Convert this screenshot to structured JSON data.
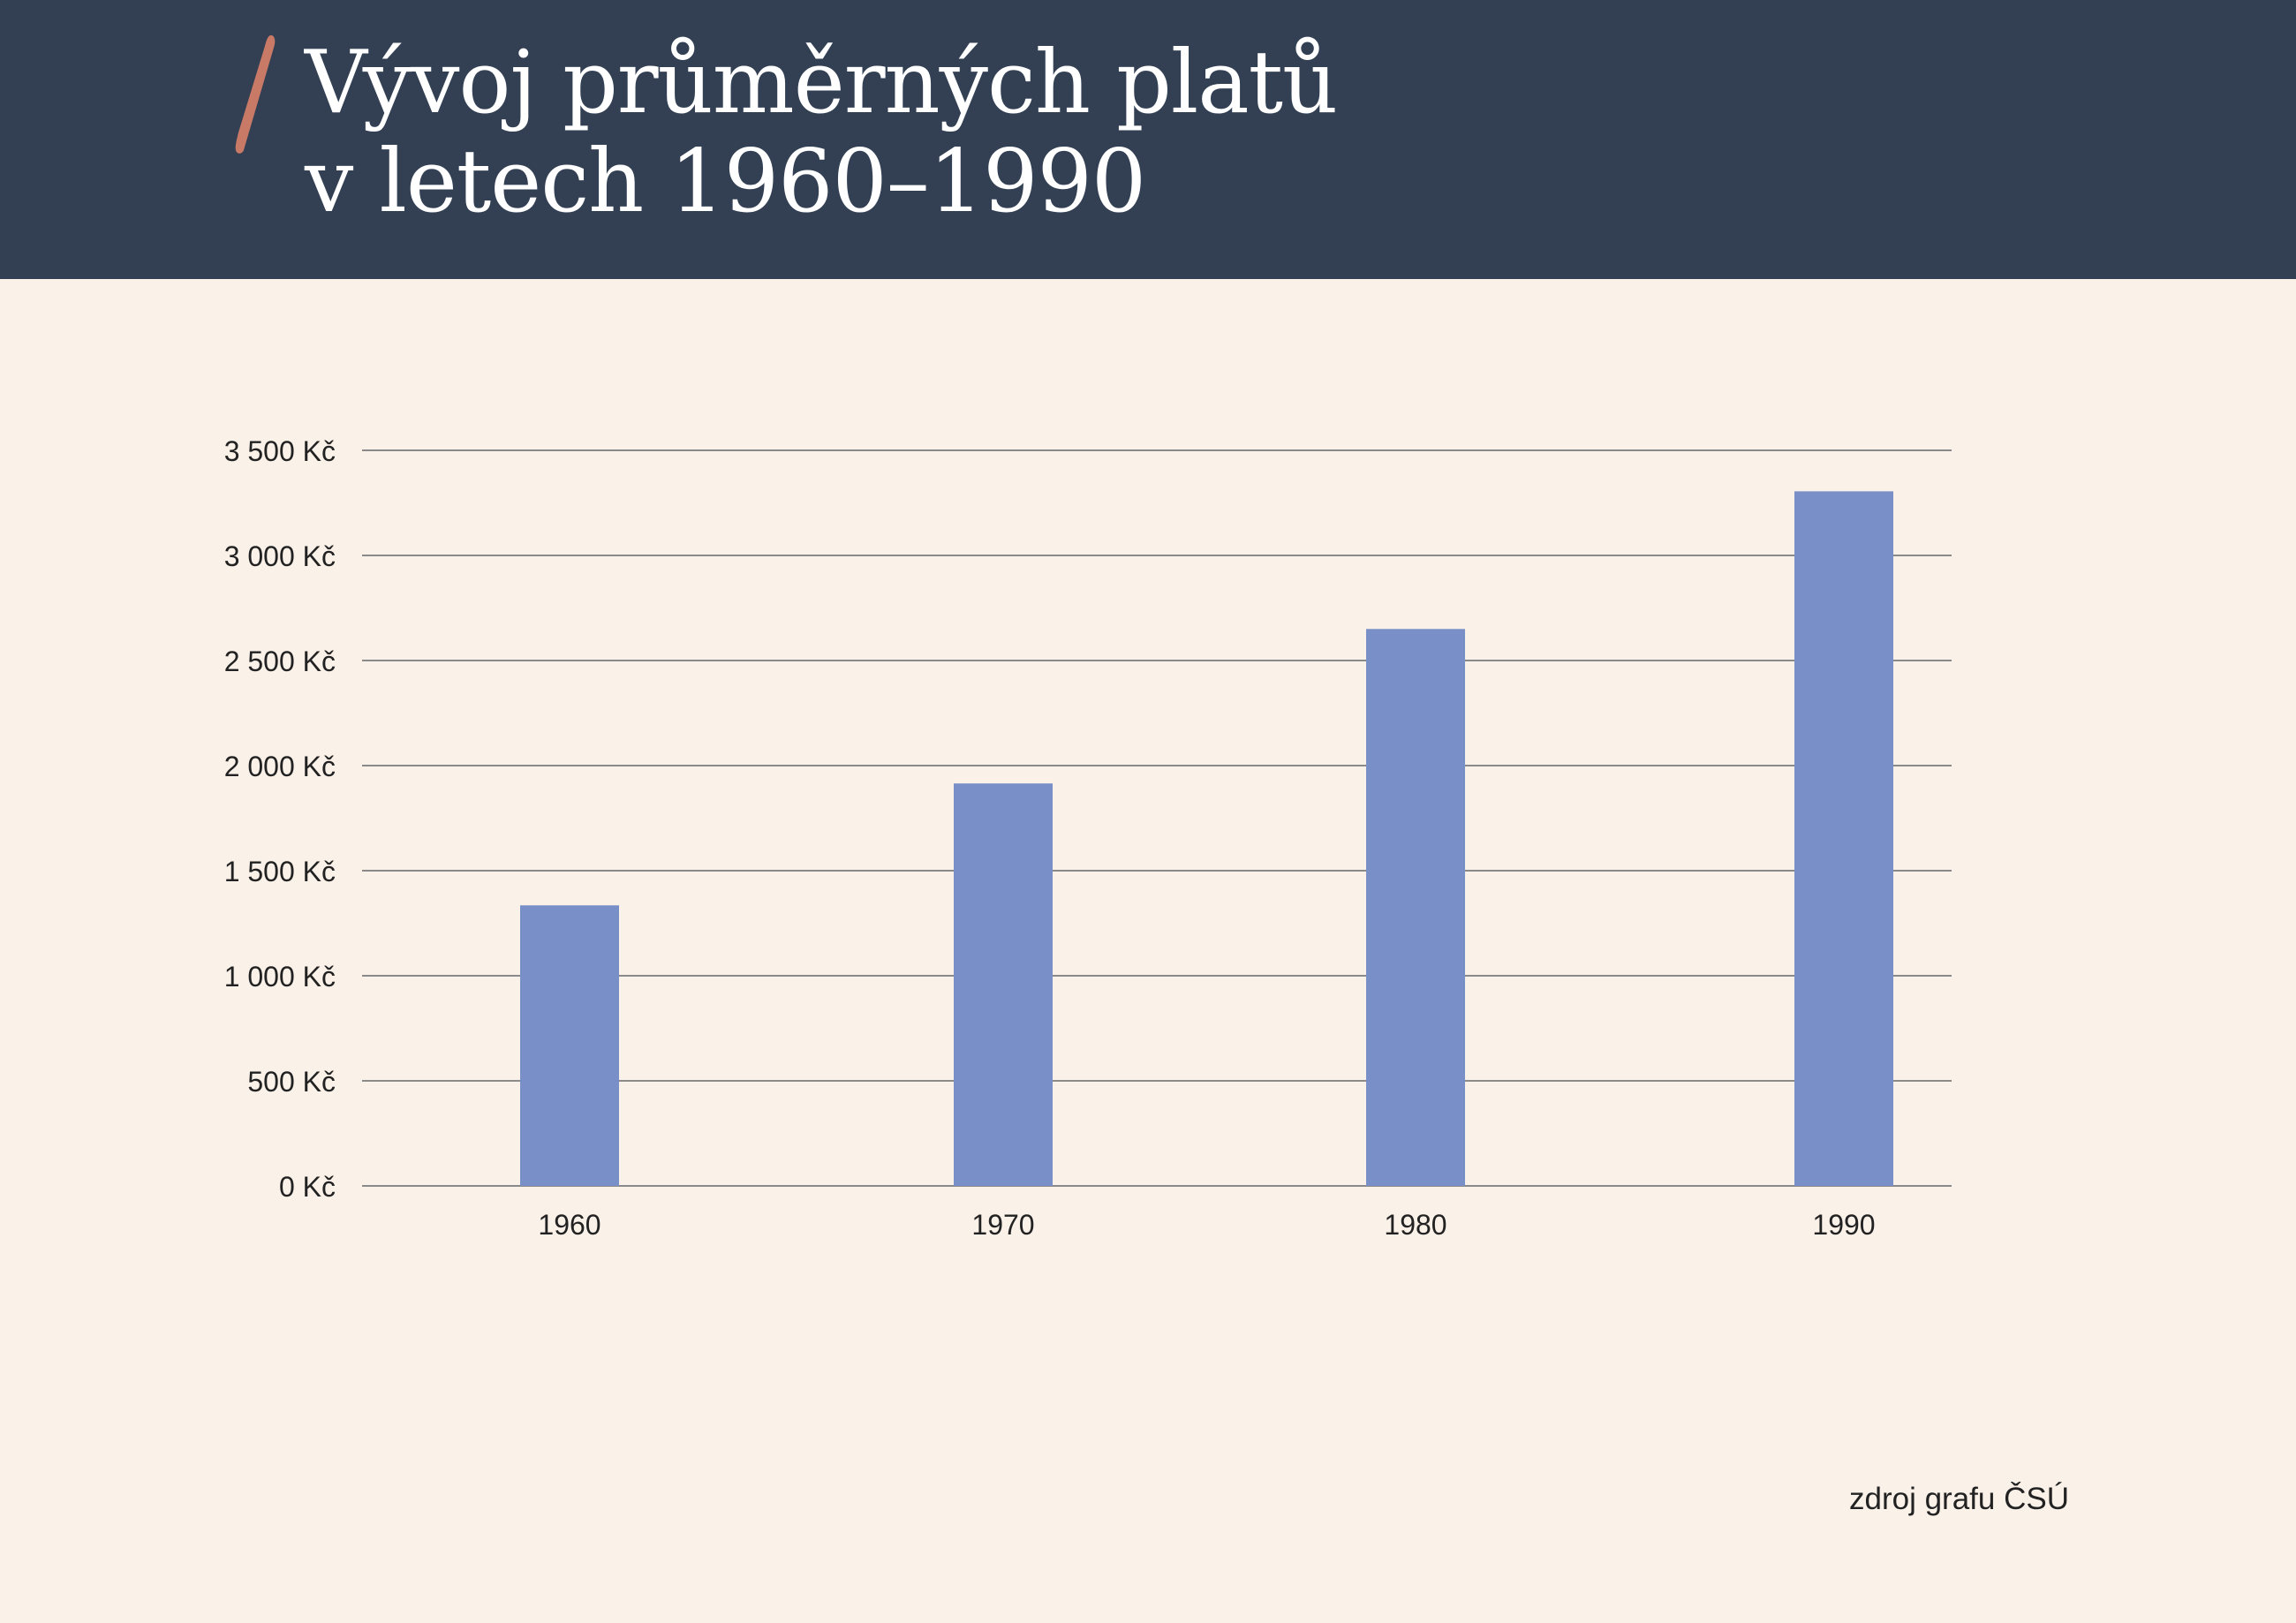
{
  "header": {
    "title_line1": "Vývoj průměrných platů",
    "title_line2": "v letech 1960–1990",
    "background": "#334054",
    "accent_color": "#c97a66"
  },
  "source": "zdroj grafu ČSÚ",
  "chart_data": {
    "type": "bar",
    "title": "Vývoj průměrných platů v letech 1960–1990",
    "xlabel": "",
    "ylabel": "",
    "categories": [
      "1960",
      "1970",
      "1980",
      "1990"
    ],
    "values": [
      1335,
      1915,
      2650,
      3305
    ],
    "ylim": [
      0,
      3500
    ],
    "yticks": [
      0,
      500,
      1000,
      1500,
      2000,
      2500,
      3000,
      3500
    ],
    "ytick_labels": [
      "0 Kč",
      "500 Kč",
      "1 000 Kč",
      "1 500 Kč",
      "2 000 Kč",
      "2 500 Kč",
      "3 000 Kč",
      "3 500 Kč"
    ],
    "grid": true,
    "legend": "none",
    "bar_color": "#788fc7",
    "grid_color": "#8a8a8a"
  }
}
